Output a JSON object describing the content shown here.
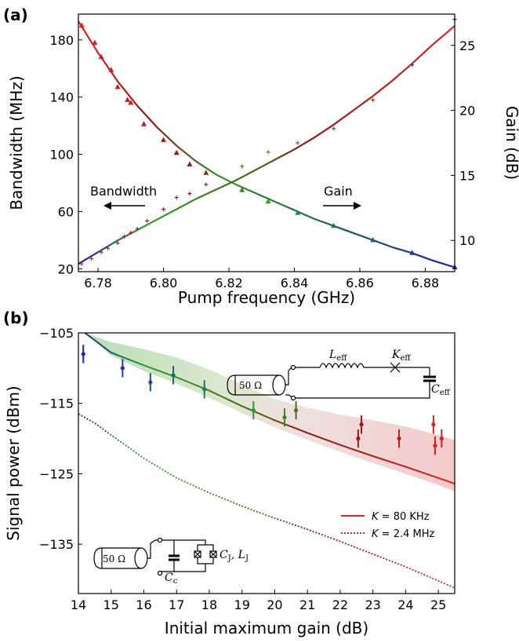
{
  "chart_data": [
    {
      "panel_label": "(a)",
      "type": "line",
      "xlabel": "Pump frequency (GHz)",
      "ylabel": "Bandwidth (MHz)",
      "ylabel_right": "Gain (dB)",
      "xlim": [
        6.774,
        6.889
      ],
      "ylim": [
        18,
        198
      ],
      "ylim_right": [
        7.6,
        27.4
      ],
      "xticks": [
        "6.78",
        "6.80",
        "6.82",
        "6.84",
        "6.86",
        "6.88"
      ],
      "yticks": [
        "20",
        "60",
        "100",
        "140",
        "180"
      ],
      "yticks_right": [
        "10",
        "15",
        "20",
        "25"
      ],
      "annotations": {
        "bandwidth": "Bandwidth",
        "gain": "Gain"
      },
      "colors": {
        "red": "#d62728",
        "green": "#2ca02c",
        "blue": "#1f1fa8"
      },
      "series": [
        {
          "kind": "fit",
          "axis": "left",
          "x": [
            6.774,
            6.78,
            6.786,
            6.792,
            6.798,
            6.804,
            6.81,
            6.816,
            6.822,
            6.828,
            6.834,
            6.84,
            6.846,
            6.852,
            6.858,
            6.864,
            6.87,
            6.876,
            6.882,
            6.889
          ],
          "values": [
            193,
            171,
            151,
            134,
            119,
            106,
            95,
            86,
            79,
            73,
            67,
            61,
            55,
            50,
            45,
            40,
            35,
            31,
            26,
            21
          ]
        },
        {
          "kind": "fit",
          "axis": "right",
          "x": [
            6.774,
            6.78,
            6.786,
            6.792,
            6.798,
            6.804,
            6.81,
            6.816,
            6.822,
            6.828,
            6.834,
            6.84,
            6.846,
            6.852,
            6.858,
            6.864,
            6.87,
            6.876,
            6.882,
            6.889
          ],
          "values": [
            8.2,
            9.1,
            10.0,
            10.8,
            11.6,
            12.4,
            13.2,
            13.9,
            14.6,
            15.4,
            16.2,
            17.0,
            17.9,
            18.9,
            20.0,
            21.1,
            22.3,
            23.6,
            25.0,
            26.5
          ]
        },
        {
          "kind": "measured",
          "axis": "left",
          "marker": "triangle",
          "x": [
            6.775,
            6.779,
            6.781,
            6.784,
            6.786,
            6.789,
            6.79,
            6.794,
            6.8,
            6.804,
            6.808,
            6.813,
            6.824,
            6.832,
            6.841,
            6.852,
            6.864,
            6.876,
            6.889
          ],
          "values": [
            190,
            178,
            168,
            159,
            147,
            138,
            136,
            121,
            110,
            101,
            93,
            87,
            75,
            67,
            59,
            50,
            40,
            31,
            21
          ]
        },
        {
          "kind": "measured",
          "axis": "right",
          "marker": "plus",
          "x": [
            6.775,
            6.778,
            6.781,
            6.783,
            6.786,
            6.788,
            6.79,
            6.792,
            6.795,
            6.8,
            6.804,
            6.808,
            6.813,
            6.824,
            6.832,
            6.841,
            6.852,
            6.864,
            6.876,
            6.889
          ],
          "values": [
            8.2,
            8.6,
            9.1,
            9.4,
            9.8,
            10.3,
            10.6,
            10.9,
            11.5,
            12.4,
            13.3,
            13.6,
            14.3,
            15.7,
            16.8,
            17.5,
            18.6,
            20.8,
            23.5,
            27.0
          ]
        }
      ]
    },
    {
      "panel_label": "(b)",
      "type": "line",
      "xlabel": "Initial maximum gain (dB)",
      "ylabel": "Signal power (dBm)",
      "xlim": [
        14,
        25.5
      ],
      "ylim": [
        -142,
        -105
      ],
      "xticks": [
        "14",
        "15",
        "16",
        "17",
        "18",
        "19",
        "20",
        "21",
        "22",
        "23",
        "24",
        "25"
      ],
      "yticks": [
        "−105",
        "−115",
        "−125",
        "−135"
      ],
      "legend": [
        {
          "label_prefix": "K",
          "label_value": " = 80 KHz",
          "style": "solid",
          "color": "#d62728"
        },
        {
          "label_prefix": "K",
          "label_value": " = 2.4 MHz",
          "style": "dotted",
          "color": "#d62728"
        }
      ],
      "series": [
        {
          "kind": "model",
          "style": "solid",
          "x": [
            14.2,
            15,
            16,
            17,
            18,
            19,
            20,
            21,
            22,
            23,
            24,
            25,
            25.5
          ],
          "values": [
            -105,
            -107.8,
            -109.6,
            -111.3,
            -113.2,
            -115.4,
            -117.4,
            -119.2,
            -120.9,
            -122.5,
            -124.0,
            -125.6,
            -126.4
          ],
          "band_upper": [
            -105,
            -106.3,
            -107.3,
            -108.5,
            -110.2,
            -112.3,
            -114.4,
            -115.6,
            -116.6,
            -117.4,
            -118.3,
            -119.5,
            -120.2
          ],
          "band_lower": [
            -105,
            -108.2,
            -110.4,
            -112.2,
            -114.2,
            -116.4,
            -118.4,
            -120.2,
            -121.9,
            -123.5,
            -125.0,
            -126.6,
            -127.5
          ]
        },
        {
          "kind": "model",
          "style": "dotted",
          "x": [
            14,
            14.5,
            15,
            16,
            17,
            18,
            19,
            20,
            21,
            22,
            23,
            24,
            25,
            25.5
          ],
          "values": [
            -116.5,
            -117.8,
            -119.5,
            -122.8,
            -125.6,
            -127.7,
            -129.6,
            -131.3,
            -132.9,
            -134.6,
            -136.4,
            -138.2,
            -140.2,
            -141.2
          ]
        },
        {
          "kind": "measured",
          "marker": "dot_errorbar",
          "x": [
            14.15,
            15.35,
            16.2,
            16.9,
            17.85,
            19.35,
            20.3,
            20.65,
            22.55,
            22.65,
            23.8,
            24.85,
            24.9,
            25.1
          ],
          "values": [
            -108.0,
            -110.0,
            -112.0,
            -111.0,
            -113.0,
            -116.0,
            -117.0,
            -116.0,
            -120.0,
            -118.0,
            -120.0,
            -118.0,
            -121.0,
            -120.0
          ],
          "errors": [
            1.3,
            1.3,
            1.3,
            1.3,
            1.3,
            1.3,
            1.3,
            1.3,
            1.3,
            1.3,
            1.3,
            1.3,
            1.3,
            1.3
          ]
        }
      ],
      "circuits": {
        "top": {
          "source": "50 Ω",
          "inductor": "L",
          "inductor_sub": "eff",
          "kerr": "K",
          "kerr_sub": "eff",
          "cap": "C",
          "cap_sub": "eff"
        },
        "bottom": {
          "source": "50 Ω",
          "coupling": "C",
          "coupling_sub": "c",
          "junction_c": "C",
          "junction_c_sub": "J",
          "junction_l": "L",
          "junction_l_sub": "J"
        }
      }
    }
  ]
}
